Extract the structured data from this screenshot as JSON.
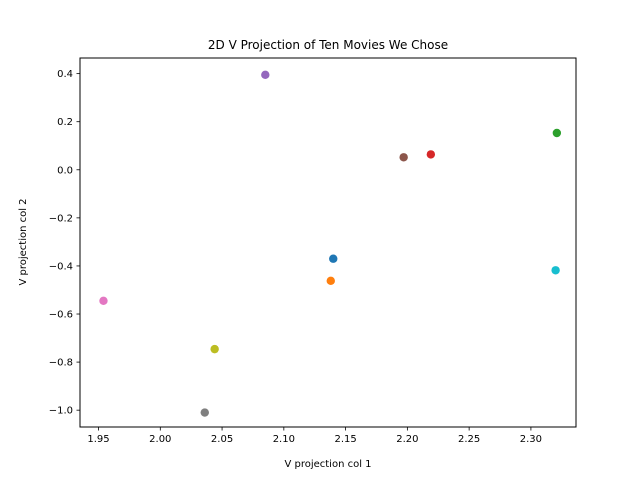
{
  "chart_data": {
    "type": "scatter",
    "title": "2D V Projection of Ten Movies We Chose",
    "xlabel": "V projection col 1",
    "ylabel": "V projection col 2",
    "xlim": [
      1.935,
      2.3365
    ],
    "ylim": [
      -1.07,
      0.465
    ],
    "xticks": [
      1.95,
      2.0,
      2.05,
      2.1,
      2.15,
      2.2,
      2.25,
      2.3
    ],
    "xtick_labels": [
      "1.95",
      "2.00",
      "2.05",
      "2.10",
      "2.15",
      "2.20",
      "2.25",
      "2.30"
    ],
    "yticks": [
      -1.0,
      -0.8,
      -0.6,
      -0.4,
      -0.2,
      0.0,
      0.2,
      0.4
    ],
    "ytick_labels": [
      "−1.0",
      "−0.8",
      "−0.6",
      "−0.4",
      "−0.2",
      "0.0",
      "0.2",
      "0.4"
    ],
    "grid": false,
    "legend": "none",
    "points": [
      {
        "x": 2.14,
        "y": -0.37,
        "color": "#1f77b4"
      },
      {
        "x": 2.138,
        "y": -0.462,
        "color": "#ff7f0e"
      },
      {
        "x": 2.321,
        "y": 0.153,
        "color": "#2ca02c"
      },
      {
        "x": 2.219,
        "y": 0.064,
        "color": "#d62728"
      },
      {
        "x": 2.085,
        "y": 0.395,
        "color": "#9467bd"
      },
      {
        "x": 2.197,
        "y": 0.052,
        "color": "#8c564b"
      },
      {
        "x": 1.954,
        "y": -0.545,
        "color": "#e377c2"
      },
      {
        "x": 2.036,
        "y": -1.01,
        "color": "#7f7f7f"
      },
      {
        "x": 2.044,
        "y": -0.746,
        "color": "#bcbd22"
      },
      {
        "x": 2.32,
        "y": -0.418,
        "color": "#17becf"
      }
    ]
  }
}
